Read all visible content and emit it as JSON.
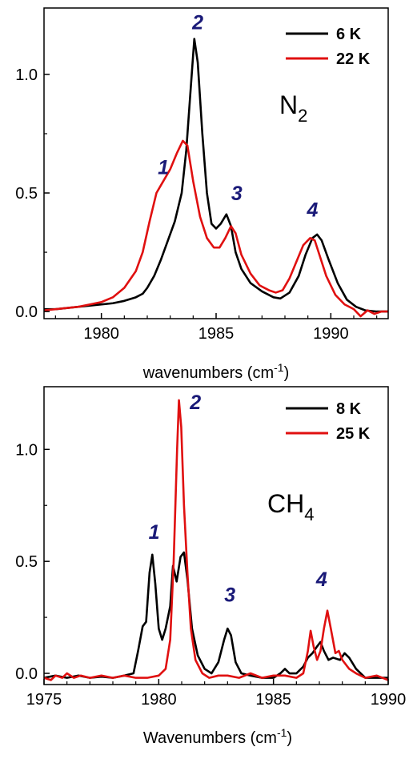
{
  "chart_data": [
    {
      "type": "line",
      "molecule": "N",
      "molecule_sub": "2",
      "xlabel": "wavenumbers (cm",
      "xlabel_sup": "-1",
      "xlabel_end": ")",
      "xlim": [
        1977.5,
        1992.5
      ],
      "ylim": [
        -0.03,
        1.28
      ],
      "xticks": [
        "1980",
        "1985",
        "1990"
      ],
      "xtick_values": [
        1980,
        1985,
        1990
      ],
      "yticks": [
        "0.0",
        "0.5",
        "1.0"
      ],
      "ytick_values": [
        0,
        0.5,
        1.0
      ],
      "peak_labels": [
        {
          "text": "1",
          "x": 1982.7,
          "y": 0.58
        },
        {
          "text": "2",
          "x": 1984.2,
          "y": 1.19
        },
        {
          "text": "3",
          "x": 1985.9,
          "y": 0.47
        },
        {
          "text": "4",
          "x": 1989.2,
          "y": 0.4
        }
      ],
      "series": [
        {
          "name": "6 K",
          "color": "#000000",
          "points": [
            [
              1977.5,
              0.01
            ],
            [
              1978,
              0.01
            ],
            [
              1978.5,
              0.015
            ],
            [
              1979,
              0.02
            ],
            [
              1979.5,
              0.025
            ],
            [
              1980,
              0.03
            ],
            [
              1980.5,
              0.035
            ],
            [
              1981,
              0.045
            ],
            [
              1981.5,
              0.06
            ],
            [
              1981.8,
              0.075
            ],
            [
              1982,
              0.1
            ],
            [
              1982.3,
              0.15
            ],
            [
              1982.6,
              0.22
            ],
            [
              1982.9,
              0.3
            ],
            [
              1983.2,
              0.38
            ],
            [
              1983.5,
              0.5
            ],
            [
              1983.7,
              0.68
            ],
            [
              1983.9,
              0.95
            ],
            [
              1984.05,
              1.15
            ],
            [
              1984.2,
              1.05
            ],
            [
              1984.4,
              0.75
            ],
            [
              1984.6,
              0.5
            ],
            [
              1984.8,
              0.37
            ],
            [
              1985.0,
              0.35
            ],
            [
              1985.2,
              0.37
            ],
            [
              1985.45,
              0.41
            ],
            [
              1985.65,
              0.36
            ],
            [
              1985.85,
              0.25
            ],
            [
              1986.1,
              0.18
            ],
            [
              1986.5,
              0.12
            ],
            [
              1987,
              0.085
            ],
            [
              1987.5,
              0.06
            ],
            [
              1987.8,
              0.055
            ],
            [
              1988.2,
              0.08
            ],
            [
              1988.6,
              0.15
            ],
            [
              1988.9,
              0.24
            ],
            [
              1989.2,
              0.31
            ],
            [
              1989.4,
              0.325
            ],
            [
              1989.6,
              0.3
            ],
            [
              1989.9,
              0.22
            ],
            [
              1990.3,
              0.12
            ],
            [
              1990.7,
              0.05
            ],
            [
              1991.1,
              0.02
            ],
            [
              1991.5,
              0.005
            ],
            [
              1992,
              0.0
            ],
            [
              1992.5,
              0.0
            ]
          ]
        },
        {
          "name": "22 K",
          "color": "#e01010",
          "points": [
            [
              1977.5,
              0.005
            ],
            [
              1978,
              0.01
            ],
            [
              1978.5,
              0.015
            ],
            [
              1979,
              0.02
            ],
            [
              1979.5,
              0.03
            ],
            [
              1980,
              0.04
            ],
            [
              1980.5,
              0.06
            ],
            [
              1981,
              0.1
            ],
            [
              1981.5,
              0.17
            ],
            [
              1981.8,
              0.25
            ],
            [
              1982.1,
              0.38
            ],
            [
              1982.4,
              0.5
            ],
            [
              1982.7,
              0.55
            ],
            [
              1983.0,
              0.6
            ],
            [
              1983.3,
              0.67
            ],
            [
              1983.55,
              0.72
            ],
            [
              1983.75,
              0.7
            ],
            [
              1984.0,
              0.55
            ],
            [
              1984.3,
              0.4
            ],
            [
              1984.6,
              0.31
            ],
            [
              1984.9,
              0.27
            ],
            [
              1985.15,
              0.27
            ],
            [
              1985.4,
              0.31
            ],
            [
              1985.65,
              0.36
            ],
            [
              1985.85,
              0.33
            ],
            [
              1986.1,
              0.24
            ],
            [
              1986.5,
              0.16
            ],
            [
              1986.9,
              0.11
            ],
            [
              1987.3,
              0.09
            ],
            [
              1987.6,
              0.08
            ],
            [
              1987.9,
              0.09
            ],
            [
              1988.2,
              0.14
            ],
            [
              1988.5,
              0.21
            ],
            [
              1988.8,
              0.28
            ],
            [
              1989.1,
              0.31
            ],
            [
              1989.3,
              0.3
            ],
            [
              1989.5,
              0.24
            ],
            [
              1989.8,
              0.15
            ],
            [
              1990.2,
              0.07
            ],
            [
              1990.6,
              0.03
            ],
            [
              1991.0,
              0.01
            ],
            [
              1991.3,
              -0.02
            ],
            [
              1991.6,
              0.005
            ],
            [
              1991.9,
              -0.01
            ],
            [
              1992.2,
              0.0
            ],
            [
              1992.5,
              0.0
            ]
          ]
        }
      ]
    },
    {
      "type": "line",
      "molecule": "CH",
      "molecule_sub": "4",
      "xlabel": "Wavenumbers (cm",
      "xlabel_sup": "-1",
      "xlabel_end": ")",
      "xlim": [
        1975,
        1990
      ],
      "ylim": [
        -0.05,
        1.28
      ],
      "xticks": [
        "1975",
        "1980",
        "1985",
        "1990"
      ],
      "xtick_values": [
        1975,
        1980,
        1985,
        1990
      ],
      "yticks": [
        "0.0",
        "0.5",
        "1.0"
      ],
      "ytick_values": [
        0,
        0.5,
        1.0
      ],
      "peak_labels": [
        {
          "text": "1",
          "x": 1979.8,
          "y": 0.6
        },
        {
          "text": "2",
          "x": 1981.6,
          "y": 1.18
        },
        {
          "text": "3",
          "x": 1983.1,
          "y": 0.32
        },
        {
          "text": "4",
          "x": 1987.1,
          "y": 0.39
        }
      ],
      "series": [
        {
          "name": "8 K",
          "color": "#000000",
          "points": [
            [
              1975,
              -0.02
            ],
            [
              1975.5,
              -0.01
            ],
            [
              1976,
              -0.02
            ],
            [
              1976.5,
              -0.01
            ],
            [
              1977,
              -0.02
            ],
            [
              1977.5,
              -0.015
            ],
            [
              1978,
              -0.02
            ],
            [
              1978.5,
              -0.01
            ],
            [
              1978.9,
              0.0
            ],
            [
              1979.1,
              0.1
            ],
            [
              1979.3,
              0.21
            ],
            [
              1979.45,
              0.23
            ],
            [
              1979.6,
              0.45
            ],
            [
              1979.72,
              0.53
            ],
            [
              1979.85,
              0.4
            ],
            [
              1980.0,
              0.2
            ],
            [
              1980.15,
              0.15
            ],
            [
              1980.3,
              0.2
            ],
            [
              1980.5,
              0.3
            ],
            [
              1980.62,
              0.48
            ],
            [
              1980.78,
              0.41
            ],
            [
              1980.95,
              0.52
            ],
            [
              1981.1,
              0.54
            ],
            [
              1981.25,
              0.42
            ],
            [
              1981.45,
              0.2
            ],
            [
              1981.7,
              0.08
            ],
            [
              1982.0,
              0.02
            ],
            [
              1982.3,
              0.0
            ],
            [
              1982.6,
              0.05
            ],
            [
              1982.85,
              0.15
            ],
            [
              1983.0,
              0.2
            ],
            [
              1983.15,
              0.17
            ],
            [
              1983.35,
              0.05
            ],
            [
              1983.6,
              0.0
            ],
            [
              1984.0,
              -0.01
            ],
            [
              1984.5,
              -0.02
            ],
            [
              1985,
              -0.02
            ],
            [
              1985.3,
              0.0
            ],
            [
              1985.5,
              0.02
            ],
            [
              1985.7,
              0.0
            ],
            [
              1986.0,
              0.0
            ],
            [
              1986.3,
              0.03
            ],
            [
              1986.5,
              0.07
            ],
            [
              1986.7,
              0.09
            ],
            [
              1986.9,
              0.12
            ],
            [
              1987.05,
              0.14
            ],
            [
              1987.2,
              0.1
            ],
            [
              1987.4,
              0.06
            ],
            [
              1987.6,
              0.07
            ],
            [
              1987.9,
              0.06
            ],
            [
              1988.1,
              0.09
            ],
            [
              1988.3,
              0.07
            ],
            [
              1988.6,
              0.02
            ],
            [
              1989,
              -0.02
            ],
            [
              1989.5,
              -0.02
            ],
            [
              1990,
              -0.02
            ]
          ]
        },
        {
          "name": "25 K",
          "color": "#e01010",
          "points": [
            [
              1975,
              -0.02
            ],
            [
              1975.3,
              -0.03
            ],
            [
              1975.5,
              -0.01
            ],
            [
              1975.8,
              -0.02
            ],
            [
              1976,
              0.0
            ],
            [
              1976.3,
              -0.02
            ],
            [
              1976.6,
              -0.01
            ],
            [
              1977,
              -0.02
            ],
            [
              1977.5,
              -0.01
            ],
            [
              1978,
              -0.02
            ],
            [
              1978.5,
              -0.01
            ],
            [
              1979,
              -0.02
            ],
            [
              1979.5,
              -0.02
            ],
            [
              1980,
              -0.01
            ],
            [
              1980.3,
              0.02
            ],
            [
              1980.5,
              0.15
            ],
            [
              1980.65,
              0.5
            ],
            [
              1980.8,
              1.0
            ],
            [
              1980.88,
              1.22
            ],
            [
              1980.98,
              1.1
            ],
            [
              1981.1,
              0.75
            ],
            [
              1981.25,
              0.45
            ],
            [
              1981.4,
              0.2
            ],
            [
              1981.6,
              0.06
            ],
            [
              1981.9,
              0.0
            ],
            [
              1982.2,
              -0.02
            ],
            [
              1982.6,
              -0.01
            ],
            [
              1983,
              -0.01
            ],
            [
              1983.5,
              -0.02
            ],
            [
              1984,
              0.0
            ],
            [
              1984.5,
              -0.02
            ],
            [
              1985,
              -0.01
            ],
            [
              1985.5,
              -0.01
            ],
            [
              1986,
              -0.02
            ],
            [
              1986.3,
              0.0
            ],
            [
              1986.5,
              0.1
            ],
            [
              1986.62,
              0.19
            ],
            [
              1986.75,
              0.12
            ],
            [
              1986.9,
              0.06
            ],
            [
              1987.05,
              0.1
            ],
            [
              1987.2,
              0.2
            ],
            [
              1987.35,
              0.28
            ],
            [
              1987.5,
              0.2
            ],
            [
              1987.7,
              0.09
            ],
            [
              1987.85,
              0.1
            ],
            [
              1988.0,
              0.06
            ],
            [
              1988.3,
              0.02
            ],
            [
              1988.6,
              0.0
            ],
            [
              1989,
              -0.02
            ],
            [
              1989.5,
              -0.01
            ],
            [
              1990,
              -0.03
            ]
          ]
        }
      ]
    }
  ]
}
